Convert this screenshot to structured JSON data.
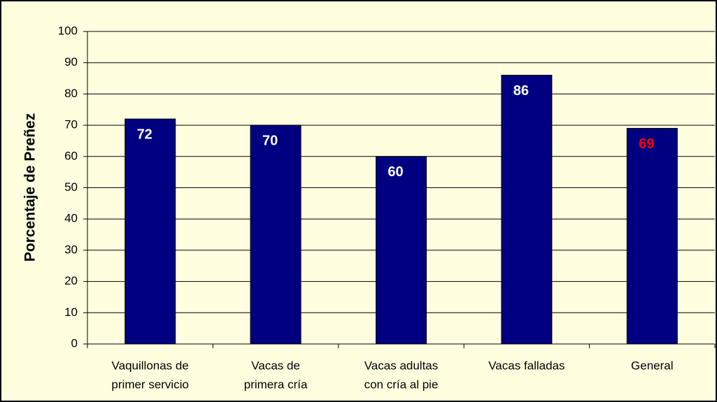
{
  "chart_data": {
    "type": "bar",
    "y_label": "Porcentaje de Preñez",
    "categories": [
      [
        "Vaquillonas de",
        "primer servicio"
      ],
      [
        "Vacas de",
        "primera cría"
      ],
      [
        "Vacas adultas",
        "con cría al pie"
      ],
      [
        "Vacas falladas"
      ],
      [
        "General"
      ]
    ],
    "values": [
      72,
      70,
      60,
      86,
      69
    ],
    "color": "#000080",
    "label_colors": [
      "#ffffff",
      "#ffffff",
      "#ffffff",
      "#ffffff",
      "#ff0000"
    ],
    "ylim": [
      0,
      100
    ],
    "yticks": [
      0,
      10,
      20,
      30,
      40,
      50,
      60,
      70,
      80,
      90,
      100
    ],
    "grid": true
  }
}
